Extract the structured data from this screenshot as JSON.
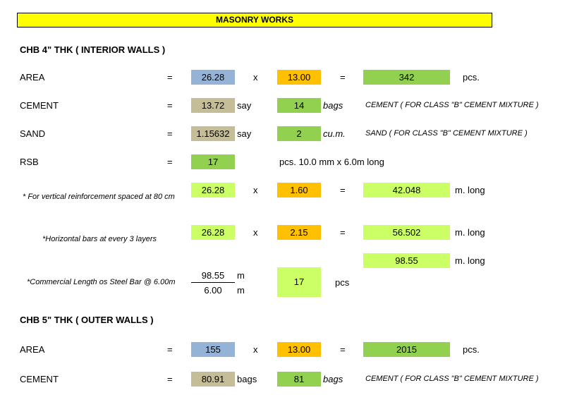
{
  "title": "MASONRY WORKS",
  "interior": {
    "heading": "CHB 4\" THK ( INTERIOR WALLS )",
    "area": {
      "label": "AREA",
      "eq": "=",
      "qty": "26.28",
      "op": "x",
      "factor": "13.00",
      "eq2": "=",
      "result": "342",
      "unit": "pcs."
    },
    "cement": {
      "label": "CEMENT",
      "eq": "=",
      "qty": "13.72",
      "say": "say",
      "result": "14",
      "unit": "bags",
      "note": "CEMENT ( FOR CLASS \"B\" CEMENT MIXTURE )"
    },
    "sand": {
      "label": "SAND",
      "eq": "=",
      "qty": "1.15632",
      "say": "say",
      "result": "2",
      "unit": "cu.m.",
      "note": "SAND ( FOR CLASS \"B\" CEMENT MIXTURE )"
    },
    "rsb": {
      "label": "RSB",
      "eq": "=",
      "qty": "17",
      "unit": "pcs. 10.0 mm x 6.0m long"
    },
    "vertical": {
      "note": "* For vertical reinforcement spaced at 80 cm",
      "qty": "26.28",
      "op": "x",
      "factor": "1.60",
      "eq": "=",
      "result": "42.048",
      "unit": "m. long"
    },
    "horizontal": {
      "note": "*Horizontal bars at every 3 layers",
      "qty": "26.28",
      "op": "x",
      "factor": "2.15",
      "eq": "=",
      "result": "56.502",
      "unit": "m. long"
    },
    "total": {
      "result": "98.55",
      "unit": "m. long"
    },
    "commercial": {
      "note": "*Commercial Length os Steel Bar @ 6.00m",
      "numerator": "98.55",
      "num_unit": "m",
      "denominator": "6.00",
      "den_unit": "m",
      "result": "17",
      "unit": "pcs"
    }
  },
  "outer": {
    "heading": "CHB 5\" THK ( OUTER WALLS )",
    "area": {
      "label": "AREA",
      "eq": "=",
      "qty": "155",
      "op": "x",
      "factor": "13.00",
      "eq2": "=",
      "result": "2015",
      "unit": "pcs."
    },
    "cement": {
      "label": "CEMENT",
      "eq": "=",
      "qty": "80.91",
      "say": "bags",
      "result": "81",
      "unit": "bags",
      "note": "CEMENT ( FOR CLASS \"B\" CEMENT MIXTURE )"
    }
  }
}
